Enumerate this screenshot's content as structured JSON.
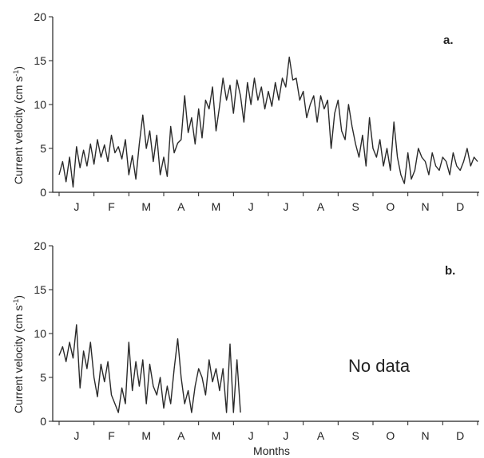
{
  "chart_data": [
    {
      "type": "line",
      "panel_label": "a.",
      "ylabel": "Current velocity (cm s",
      "ylabel_exponent": "-1",
      "ylabel_suffix": ")",
      "ylim": [
        0,
        20
      ],
      "yticks": [
        0,
        5,
        10,
        15,
        20
      ],
      "x_tick_labels": [
        "J",
        "F",
        "M",
        "A",
        "M",
        "J",
        "J",
        "A",
        "S",
        "O",
        "N",
        "D"
      ],
      "xlim": [
        0,
        12
      ],
      "annotation": "",
      "series": [
        {
          "color": "#2a2a2a",
          "x": [
            0.0,
            0.1,
            0.2,
            0.3,
            0.4,
            0.5,
            0.6,
            0.7,
            0.8,
            0.9,
            1.0,
            1.1,
            1.2,
            1.3,
            1.4,
            1.5,
            1.6,
            1.7,
            1.8,
            1.9,
            2.0,
            2.1,
            2.2,
            2.3,
            2.4,
            2.5,
            2.6,
            2.7,
            2.8,
            2.9,
            3.0,
            3.1,
            3.2,
            3.3,
            3.4,
            3.5,
            3.6,
            3.7,
            3.8,
            3.9,
            4.0,
            4.1,
            4.2,
            4.3,
            4.4,
            4.5,
            4.6,
            4.7,
            4.8,
            4.9,
            5.0,
            5.1,
            5.2,
            5.3,
            5.4,
            5.5,
            5.6,
            5.7,
            5.8,
            5.9,
            6.0,
            6.1,
            6.2,
            6.3,
            6.4,
            6.5,
            6.6,
            6.7,
            6.8,
            6.9,
            7.0,
            7.1,
            7.2,
            7.3,
            7.4,
            7.5,
            7.6,
            7.7,
            7.8,
            7.9,
            8.0,
            8.1,
            8.2,
            8.3,
            8.4,
            8.5,
            8.6,
            8.7,
            8.8,
            8.9,
            9.0,
            9.1,
            9.2,
            9.3,
            9.4,
            9.5,
            9.6,
            9.7,
            9.8,
            9.9,
            10.0,
            10.1,
            10.2,
            10.3,
            10.4,
            10.5,
            10.6,
            10.7,
            10.8,
            10.9,
            11.0,
            11.1,
            11.2,
            11.3,
            11.4,
            11.5,
            11.6,
            11.7,
            11.8,
            11.9,
            12.0
          ],
          "y": [
            2.0,
            3.5,
            1.2,
            4.0,
            0.6,
            5.2,
            2.8,
            4.8,
            3.0,
            5.5,
            3.2,
            6.0,
            4.0,
            5.4,
            3.5,
            6.5,
            4.5,
            5.2,
            3.8,
            6.0,
            2.0,
            4.2,
            1.5,
            5.5,
            8.8,
            5.0,
            7.0,
            3.5,
            6.5,
            2.0,
            4.0,
            1.8,
            7.5,
            4.5,
            5.6,
            6.0,
            11.0,
            6.8,
            8.5,
            5.5,
            9.5,
            6.2,
            10.5,
            9.5,
            12.0,
            7.0,
            9.8,
            13.0,
            10.5,
            12.2,
            9.0,
            12.8,
            11.0,
            8.0,
            12.5,
            10.0,
            13.0,
            10.5,
            12.0,
            9.5,
            11.5,
            9.8,
            12.5,
            10.5,
            13.0,
            12.0,
            15.4,
            12.8,
            13.0,
            10.5,
            11.5,
            8.5,
            10.0,
            11.0,
            8.0,
            11.0,
            9.5,
            10.5,
            5.0,
            9.0,
            10.5,
            7.0,
            6.0,
            10.0,
            7.5,
            5.5,
            4.0,
            6.5,
            3.0,
            8.5,
            5.0,
            4.0,
            6.0,
            3.0,
            5.0,
            2.5,
            8.0,
            4.0,
            2.0,
            1.0,
            4.5,
            1.5,
            2.5,
            5.0,
            4.0,
            3.5,
            2.0,
            4.5,
            3.0,
            2.5,
            4.0,
            3.5,
            2.0,
            4.5,
            3.0,
            2.5,
            3.5,
            5.0,
            3.0,
            4.0,
            3.5
          ]
        }
      ]
    },
    {
      "type": "line",
      "panel_label": "b.",
      "ylabel": "Current velocity (cm s",
      "ylabel_exponent": "-1",
      "ylabel_suffix": ")",
      "xlabel": "Months",
      "ylim": [
        0,
        20
      ],
      "yticks": [
        0,
        5,
        10,
        15,
        20
      ],
      "x_tick_labels": [
        "J",
        "F",
        "M",
        "A",
        "M",
        "J",
        "J",
        "A",
        "S",
        "O",
        "N",
        "D"
      ],
      "xlim": [
        0,
        12
      ],
      "annotation": "No data",
      "series": [
        {
          "color": "#2a2a2a",
          "x": [
            0.0,
            0.1,
            0.2,
            0.3,
            0.4,
            0.5,
            0.6,
            0.7,
            0.8,
            0.9,
            1.0,
            1.1,
            1.2,
            1.3,
            1.4,
            1.5,
            1.6,
            1.7,
            1.8,
            1.9,
            2.0,
            2.1,
            2.2,
            2.3,
            2.4,
            2.5,
            2.6,
            2.7,
            2.8,
            2.9,
            3.0,
            3.1,
            3.2,
            3.3,
            3.4,
            3.5,
            3.6,
            3.7,
            3.8,
            3.9,
            4.0,
            4.1,
            4.2,
            4.3,
            4.4,
            4.5,
            4.6,
            4.7,
            4.8,
            4.9,
            5.0,
            5.1,
            5.2
          ],
          "y": [
            7.5,
            8.5,
            6.8,
            9.0,
            7.2,
            11.0,
            3.8,
            8.0,
            6.0,
            9.0,
            5.0,
            2.8,
            6.5,
            4.5,
            6.8,
            3.0,
            2.0,
            1.0,
            3.8,
            2.0,
            9.0,
            3.5,
            6.8,
            4.0,
            7.0,
            2.0,
            6.5,
            4.0,
            3.0,
            5.0,
            1.5,
            4.0,
            2.0,
            6.0,
            9.4,
            5.0,
            2.0,
            3.5,
            1.0,
            4.0,
            6.0,
            5.0,
            3.0,
            7.0,
            4.5,
            6.0,
            3.5,
            6.0,
            1.0,
            8.8,
            1.0,
            7.0,
            1.0
          ]
        }
      ]
    }
  ]
}
